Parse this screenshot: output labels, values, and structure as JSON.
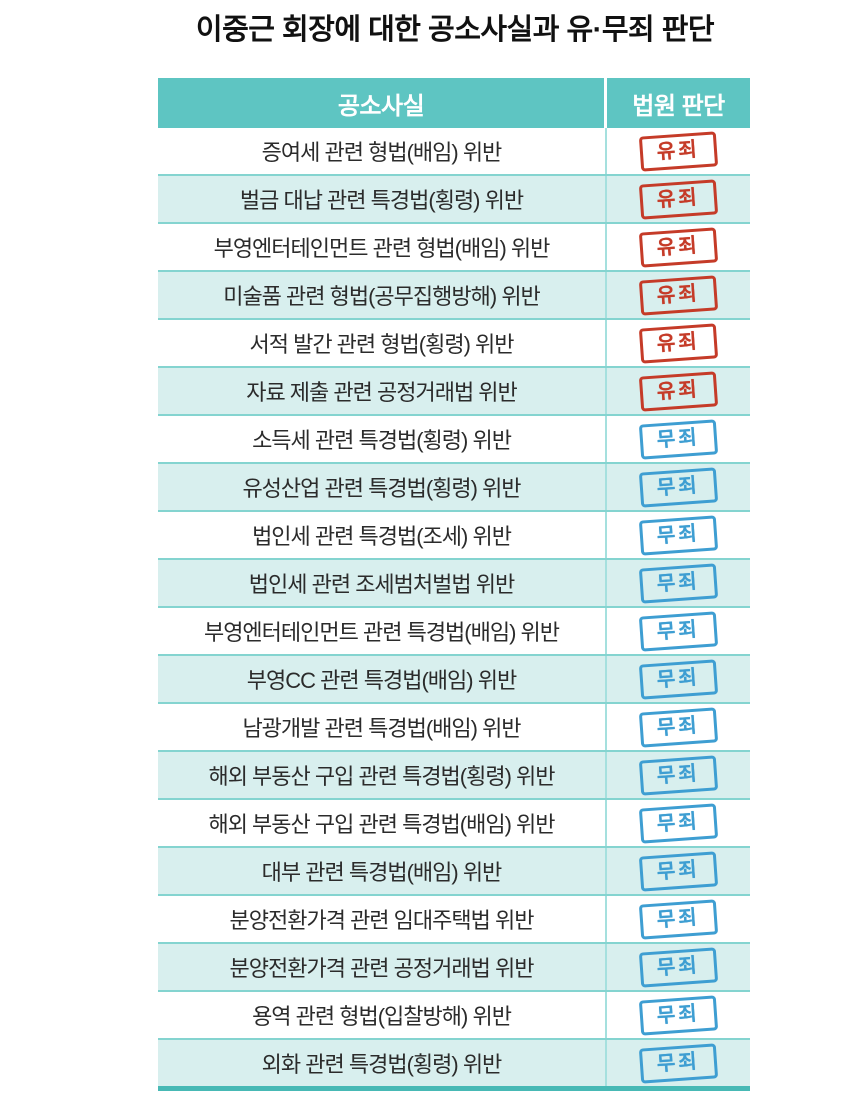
{
  "title": "이중근 회장에 대한 공소사실과 유·무죄 판단",
  "verdict_labels": {
    "guilty": "유죄",
    "not_guilty": "무죄"
  },
  "chart_data": {
    "type": "table",
    "title": "이중근 회장에 대한 공소사실과 유·무죄 판단",
    "columns": [
      "공소사실",
      "법원 판단"
    ],
    "rows": [
      {
        "charge": "증여세 관련 형법(배임) 위반",
        "verdict": "유죄",
        "verdict_type": "guilty"
      },
      {
        "charge": "벌금 대납 관련 특경법(횡령) 위반",
        "verdict": "유죄",
        "verdict_type": "guilty"
      },
      {
        "charge": "부영엔터테인먼트 관련 형법(배임) 위반",
        "verdict": "유죄",
        "verdict_type": "guilty"
      },
      {
        "charge": "미술품 관련 형법(공무집행방해) 위반",
        "verdict": "유죄",
        "verdict_type": "guilty"
      },
      {
        "charge": "서적 발간 관련 형법(횡령) 위반",
        "verdict": "유죄",
        "verdict_type": "guilty"
      },
      {
        "charge": "자료 제출 관련 공정거래법 위반",
        "verdict": "유죄",
        "verdict_type": "guilty"
      },
      {
        "charge": "소득세 관련 특경법(횡령) 위반",
        "verdict": "무죄",
        "verdict_type": "not_guilty"
      },
      {
        "charge": "유성산업 관련 특경법(횡령) 위반",
        "verdict": "무죄",
        "verdict_type": "not_guilty"
      },
      {
        "charge": "법인세 관련 특경법(조세) 위반",
        "verdict": "무죄",
        "verdict_type": "not_guilty"
      },
      {
        "charge": "법인세 관련 조세범처벌법 위반",
        "verdict": "무죄",
        "verdict_type": "not_guilty"
      },
      {
        "charge": "부영엔터테인먼트 관련 특경법(배임) 위반",
        "verdict": "무죄",
        "verdict_type": "not_guilty"
      },
      {
        "charge": "부영CC 관련 특경법(배임) 위반",
        "verdict": "무죄",
        "verdict_type": "not_guilty"
      },
      {
        "charge": "남광개발 관련 특경법(배임) 위반",
        "verdict": "무죄",
        "verdict_type": "not_guilty"
      },
      {
        "charge": "해외 부동산 구입 관련 특경법(횡령) 위반",
        "verdict": "무죄",
        "verdict_type": "not_guilty"
      },
      {
        "charge": "해외 부동산 구입 관련 특경법(배임) 위반",
        "verdict": "무죄",
        "verdict_type": "not_guilty"
      },
      {
        "charge": "대부 관련 특경법(배임) 위반",
        "verdict": "무죄",
        "verdict_type": "not_guilty"
      },
      {
        "charge": "분양전환가격 관련 임대주택법 위반",
        "verdict": "무죄",
        "verdict_type": "not_guilty"
      },
      {
        "charge": "분양전환가격 관련 공정거래법 위반",
        "verdict": "무죄",
        "verdict_type": "not_guilty"
      },
      {
        "charge": "용역 관련 형법(입찰방해) 위반",
        "verdict": "무죄",
        "verdict_type": "not_guilty"
      },
      {
        "charge": "외화 관련 특경법(횡령) 위반",
        "verdict": "무죄",
        "verdict_type": "not_guilty"
      }
    ]
  },
  "colors": {
    "header_teal": "#5ec5c2",
    "row_stripe_teal": "#d8efee",
    "row_separator_teal": "#84d4d0",
    "column_divider_teal": "#a5e0de",
    "table_bottom_teal": "#47b9b5",
    "guilty_red": "#c53b28",
    "not_guilty_blue": "#3e9ed2",
    "title_black": "#111111",
    "charge_text": "#2b2b2b"
  }
}
